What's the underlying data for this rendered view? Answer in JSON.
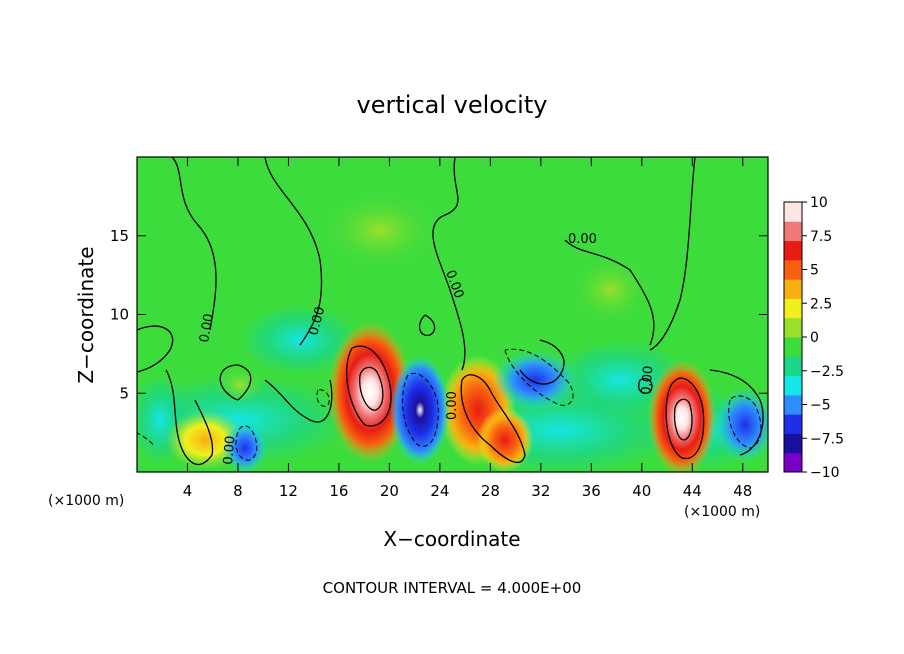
{
  "chart_data": {
    "type": "heatmap",
    "title": "vertical velocity",
    "xlabel": "X−coordinate",
    "ylabel": "Z−coordinate",
    "x_unit": "(×1000 m)",
    "x_unit_right": "(×1000 m)",
    "footer": "CONTOUR INTERVAL = 4.000E+00",
    "xlim": [
      0,
      50
    ],
    "ylim": [
      0,
      20
    ],
    "x_ticks": [
      4,
      8,
      12,
      16,
      20,
      24,
      28,
      32,
      36,
      40,
      44,
      48
    ],
    "y_ticks": [
      5,
      10,
      15
    ],
    "contour_labels": [
      "0.00",
      "0.00",
      "0.00",
      "0.00",
      "0.00",
      "0.00",
      "0.00"
    ],
    "colorbar": {
      "min": -10,
      "max": 10,
      "tick_values": [
        10,
        7.5,
        5,
        2.5,
        0,
        -2.5,
        -5,
        -7.5,
        -10
      ],
      "tick_labels": [
        "10",
        "7.5",
        "5",
        "2.5",
        "0",
        "−2.5",
        "−5",
        "−7.5",
        "−10"
      ],
      "colors": [
        "#7a00c8",
        "#1a10a0",
        "#1d30e8",
        "#2e8cff",
        "#15e6e6",
        "#1ad68a",
        "#3ddc3d",
        "#9be02a",
        "#f0f020",
        "#f8b010",
        "#f86010",
        "#e81c14",
        "#f07878",
        "#ffe6e6"
      ]
    },
    "features": [
      {
        "kind": "updraft",
        "x": 18.5,
        "z": 5.0,
        "peak": 10
      },
      {
        "kind": "updraft",
        "x": 26.5,
        "z": 4.0,
        "peak": 9
      },
      {
        "kind": "updraft",
        "x": 29.5,
        "z": 2.2,
        "peak": 7.5
      },
      {
        "kind": "updraft",
        "x": 43.0,
        "z": 3.5,
        "peak": 10
      },
      {
        "kind": "updraft",
        "x": 5.5,
        "z": 2.0,
        "peak": 5
      },
      {
        "kind": "downdraft",
        "x": 22.0,
        "z": 3.5,
        "peak": -10
      },
      {
        "kind": "downdraft",
        "x": 8.8,
        "z": 1.8,
        "peak": -7.5
      },
      {
        "kind": "downdraft",
        "x": 47.5,
        "z": 3.0,
        "peak": -9
      },
      {
        "kind": "downdraft",
        "x": 31.5,
        "z": 6.0,
        "peak": -5
      }
    ]
  }
}
